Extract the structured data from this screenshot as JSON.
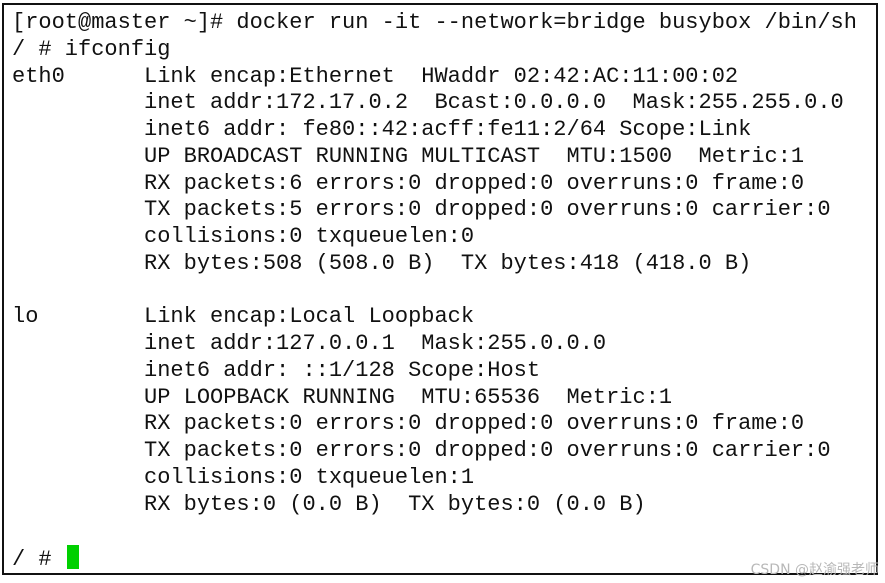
{
  "terminal": {
    "lines": [
      "[root@master ~]# docker run -it --network=bridge busybox /bin/sh",
      "/ # ifconfig",
      "eth0      Link encap:Ethernet  HWaddr 02:42:AC:11:00:02",
      "          inet addr:172.17.0.2  Bcast:0.0.0.0  Mask:255.255.0.0",
      "          inet6 addr: fe80::42:acff:fe11:2/64 Scope:Link",
      "          UP BROADCAST RUNNING MULTICAST  MTU:1500  Metric:1",
      "          RX packets:6 errors:0 dropped:0 overruns:0 frame:0",
      "          TX packets:5 errors:0 dropped:0 overruns:0 carrier:0",
      "          collisions:0 txqueuelen:0",
      "          RX bytes:508 (508.0 B)  TX bytes:418 (418.0 B)",
      "",
      "lo        Link encap:Local Loopback",
      "          inet addr:127.0.0.1  Mask:255.0.0.0",
      "          inet6 addr: ::1/128 Scope:Host",
      "          UP LOOPBACK RUNNING  MTU:65536  Metric:1",
      "          RX packets:0 errors:0 dropped:0 overruns:0 frame:0",
      "          TX packets:0 errors:0 dropped:0 overruns:0 carrier:0",
      "          collisions:0 txqueuelen:1",
      "          RX bytes:0 (0.0 B)  TX bytes:0 (0.0 B)",
      ""
    ],
    "prompt": "/ # ",
    "cursor_color": "#00d000"
  },
  "watermark": "CSDN @赵渝强老师"
}
